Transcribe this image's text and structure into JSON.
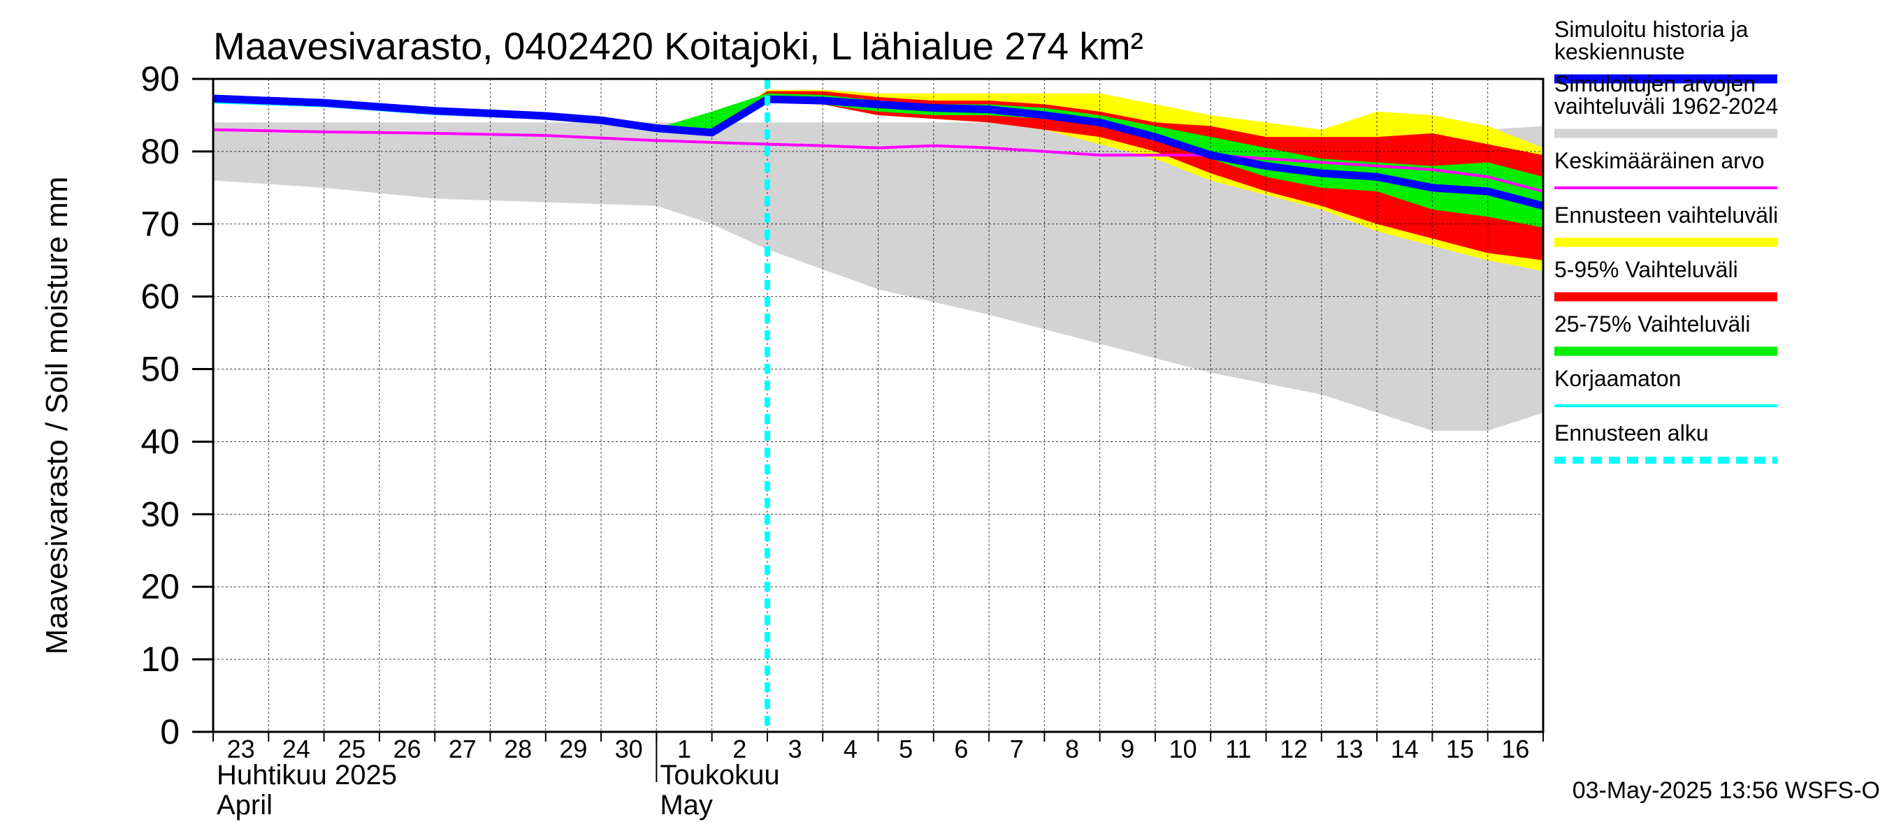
{
  "chart_data": {
    "type": "area",
    "title": "Maavesivarasto, 0402420 Koitajoki, L lähialue 274 km²",
    "ylabel": "Maavesivarasto / Soil moisture   mm",
    "ylim": [
      0,
      90
    ],
    "yticks": [
      0,
      10,
      20,
      30,
      40,
      50,
      60,
      70,
      80,
      90
    ],
    "x_day_index_range": [
      0,
      24
    ],
    "x_tick_labels": [
      "23",
      "24",
      "25",
      "26",
      "27",
      "28",
      "29",
      "30",
      "1",
      "2",
      "3",
      "4",
      "5",
      "6",
      "7",
      "8",
      "9",
      "10",
      "11",
      "12",
      "13",
      "14",
      "15",
      "16"
    ],
    "month_labels": [
      {
        "fi": "Huhtikuu  2025",
        "en": "April",
        "start_index": 0
      },
      {
        "fi": "Toukokuu",
        "en": "May",
        "start_index": 8
      }
    ],
    "month_divider_index": 8,
    "forecast_start_index": 10,
    "grid": true,
    "series": [
      {
        "name": "Simuloitujen arvojen vaihteluväli 1962-2024",
        "kind": "band",
        "color": "#d3d3d3",
        "x": [
          0,
          2,
          4,
          6,
          8,
          9,
          10,
          12,
          14,
          16,
          18,
          20,
          21,
          22,
          23,
          24
        ],
        "low": [
          76,
          75,
          73.5,
          73,
          72.5,
          70,
          66.5,
          61,
          57.5,
          53.5,
          49.5,
          46.5,
          44,
          41.5,
          41.5,
          44
        ],
        "high": [
          84,
          84,
          84,
          84,
          84,
          84,
          84,
          84,
          84,
          83,
          83,
          83,
          83,
          83,
          83,
          83.5
        ]
      },
      {
        "name": "Ennusteen vaihteluväli",
        "kind": "band",
        "color": "#ffff00",
        "x": [
          8,
          9,
          10,
          11,
          12,
          13,
          14,
          15,
          16,
          17,
          18,
          19,
          20,
          21,
          22,
          23,
          24
        ],
        "low": [
          83,
          83,
          87,
          86.5,
          85,
          84.5,
          84,
          83,
          81,
          79,
          76,
          74,
          72,
          69,
          67,
          65,
          63.5
        ],
        "high": [
          83.2,
          83.5,
          88.5,
          88.5,
          88,
          88,
          88,
          88,
          88,
          86.5,
          85,
          84,
          83,
          85.5,
          85,
          83.5,
          80.5
        ]
      },
      {
        "name": "5-95% Vaihteluväli",
        "kind": "band",
        "color": "#ff0000",
        "x": [
          8,
          9,
          10,
          11,
          12,
          13,
          14,
          15,
          16,
          17,
          18,
          19,
          20,
          21,
          22,
          23,
          24
        ],
        "low": [
          83,
          83,
          87,
          86.5,
          85,
          84.5,
          84,
          83,
          82,
          80,
          77,
          74.5,
          72.5,
          70,
          68,
          66,
          65
        ],
        "high": [
          83.2,
          83.5,
          88.3,
          88.3,
          87.5,
          87,
          87,
          86.5,
          85.5,
          84,
          83.5,
          82,
          82,
          82,
          82.5,
          81,
          79.5
        ]
      },
      {
        "name": "25-75% Vaihteluväli",
        "kind": "band",
        "color": "#00ee00",
        "x": [
          8,
          9,
          10,
          11,
          12,
          13,
          14,
          15,
          16,
          17,
          18,
          19,
          20,
          21,
          22,
          23,
          24
        ],
        "low": [
          83,
          83,
          87,
          86.5,
          85.5,
          85,
          85,
          84.5,
          83.5,
          81.5,
          79,
          76.5,
          75,
          74.5,
          72,
          71,
          69.5
        ],
        "high": [
          83.2,
          85.5,
          88,
          87.8,
          87,
          86.5,
          86.5,
          86,
          85,
          83.5,
          82,
          80.5,
          79,
          78.5,
          78,
          78.5,
          76.5
        ]
      },
      {
        "name": "Keskimääräinen arvo",
        "kind": "line",
        "color": "#ff00ff",
        "x": [
          0,
          2,
          4,
          6,
          8,
          10,
          11,
          12,
          13,
          14,
          15,
          16,
          17,
          18,
          19,
          20,
          21,
          22,
          23,
          24
        ],
        "values": [
          83,
          82.7,
          82.5,
          82.2,
          81.5,
          81,
          80.8,
          80.5,
          80.8,
          80.5,
          80,
          79.5,
          79.5,
          79.5,
          79,
          78.5,
          78,
          77.5,
          76.5,
          74.5
        ]
      },
      {
        "name": "Korjaamaton",
        "kind": "line",
        "color": "#00ffff",
        "x": [
          0,
          2,
          4,
          6,
          8,
          9,
          10
        ],
        "values": [
          86.8,
          86.3,
          85.2,
          84.6,
          83.4,
          82.8,
          87
        ]
      },
      {
        "name": "Simuloitu historia ja keskiennuste",
        "kind": "line",
        "color": "#0000ff",
        "x": [
          0,
          2,
          4,
          6,
          7,
          8,
          9,
          10,
          11,
          12,
          13,
          14,
          15,
          16,
          17,
          18,
          19,
          20,
          21,
          22,
          23,
          24
        ],
        "values": [
          87.3,
          86.7,
          85.6,
          84.9,
          84.3,
          83.2,
          82.6,
          87.2,
          87,
          86.5,
          86,
          85.8,
          85,
          84,
          82,
          79.5,
          78,
          77,
          76.5,
          75,
          74.5,
          72.5
        ]
      },
      {
        "name": "Ennusteen alku",
        "kind": "vline",
        "color": "#00ffff",
        "x": 10
      }
    ],
    "legend": [
      {
        "label": "Simuloitu historia ja keskiennuste",
        "color": "#0000ff",
        "style": "thick"
      },
      {
        "label": "Simuloitujen arvojen vaihteluväli 1962-2024",
        "color": "#d3d3d3",
        "style": "thick"
      },
      {
        "label": "Keskimääräinen arvo",
        "color": "#ff00ff",
        "style": "thin"
      },
      {
        "label": "Ennusteen vaihteluväli",
        "color": "#ffff00",
        "style": "thick"
      },
      {
        "label": "5-95% Vaihteluväli",
        "color": "#ff0000",
        "style": "thick"
      },
      {
        "label": "25-75% Vaihteluväli",
        "color": "#00ee00",
        "style": "thick"
      },
      {
        "label": "Korjaamaton",
        "color": "#00ffff",
        "style": "thin"
      },
      {
        "label": "Ennusteen alku",
        "color": "#00ffff",
        "style": "dashed"
      }
    ],
    "legend_position": "right",
    "timestamp": "03-May-2025 13:56 WSFS-O"
  }
}
